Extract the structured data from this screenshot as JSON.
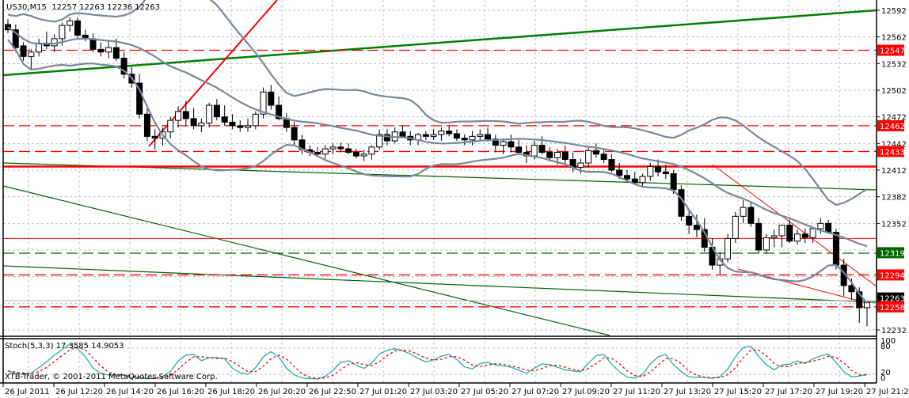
{
  "header": {
    "symbol_timeframe": "US30,M15",
    "ohlc": "12257 12263 12236 12263"
  },
  "stochastic": {
    "label": "Stoch(5,3,3) 17.3585 14.9053",
    "levels": [
      "100",
      "80",
      "20",
      "0"
    ]
  },
  "copyright": "XTB-Trader, © 2001-2011 MetaQuotes Software Corp.",
  "price_axis": {
    "ticks": [
      "12592",
      "12562",
      "12532",
      "12502",
      "12472",
      "12442",
      "12412",
      "12382",
      "12352",
      "12232"
    ],
    "tagged_levels": [
      {
        "value": "12547",
        "bg": "#ff0000",
        "fg": "#ffffff"
      },
      {
        "value": "12462",
        "bg": "#ff0000",
        "fg": "#ffffff"
      },
      {
        "value": "12433",
        "bg": "#ff0000",
        "fg": "#ffffff"
      },
      {
        "value": "12319",
        "bg": "#006400",
        "fg": "#ffffff"
      },
      {
        "value": "12294",
        "bg": "#ff0000",
        "fg": "#ffffff"
      },
      {
        "value": "12263",
        "bg": "#000000",
        "fg": "#ffffff"
      },
      {
        "value": "12258",
        "bg": "#ff0000",
        "fg": "#ffffff"
      }
    ]
  },
  "time_axis": {
    "labels": [
      "26 Jul 2011",
      "26 Jul 12:20",
      "26 Jul 14:20",
      "26 Jul 16:20",
      "26 Jul 18:20",
      "26 Jul 20:20",
      "26 Jul 22:50",
      "27 Jul 01:20",
      "27 Jul 03:20",
      "27 Jul 05:20",
      "27 Jul 07:20",
      "27 Jul 09:20",
      "27 Jul 11:20",
      "27 Jul 13:20",
      "27 Jul 15:20",
      "27 Jul 17:20",
      "27 Jul 19:20",
      "27 Jul 21:20"
    ]
  },
  "colors": {
    "bullish_candle": "#ffffff",
    "bearish_candle": "#000000",
    "bollinger": "#778899",
    "support_resistance": "#ff0000",
    "trendline_green": "#006400",
    "stoch_main": "#20b2aa",
    "stoch_signal": "#ff0000",
    "grid": "#c0c0c0"
  },
  "chart_data": [
    {
      "type": "candlestick",
      "title": "US30,M15",
      "ylabel": "Price",
      "ylim": [
        12225,
        12600
      ],
      "x_tick_labels": [
        "26 Jul 2011",
        "26 Jul 12:20",
        "26 Jul 14:20",
        "26 Jul 16:20",
        "26 Jul 18:20",
        "26 Jul 20:20",
        "26 Jul 22:50",
        "27 Jul 01:20",
        "27 Jul 03:20",
        "27 Jul 05:20",
        "27 Jul 07:20",
        "27 Jul 09:20",
        "27 Jul 11:20",
        "27 Jul 13:20",
        "27 Jul 15:20",
        "27 Jul 17:20",
        "27 Jul 19:20",
        "27 Jul 21:20"
      ],
      "last_ohlc": {
        "open": 12257,
        "high": 12263,
        "low": 12236,
        "close": 12263
      },
      "horizontal_levels": [
        {
          "price": 12547,
          "style": "dashed",
          "color": "#ff0000"
        },
        {
          "price": 12462,
          "style": "dashed",
          "color": "#ff0000"
        },
        {
          "price": 12433,
          "style": "dashed",
          "color": "#ff0000"
        },
        {
          "price": 12416,
          "style": "solid",
          "color": "#ff0000"
        },
        {
          "price": 12335,
          "style": "solid-thin",
          "color": "#ff0000"
        },
        {
          "price": 12319,
          "style": "dashed",
          "color": "#006400"
        },
        {
          "price": 12294,
          "style": "dashed",
          "color": "#ff0000"
        },
        {
          "price": 12258,
          "style": "dashed",
          "color": "#ff0000"
        }
      ],
      "candles": [
        [
          12576,
          12582,
          12566,
          12570
        ],
        [
          12570,
          12576,
          12545,
          12550
        ],
        [
          12552,
          12556,
          12535,
          12540
        ],
        [
          12540,
          12548,
          12525,
          12545
        ],
        [
          12545,
          12560,
          12540,
          12555
        ],
        [
          12555,
          12568,
          12548,
          12552
        ],
        [
          12552,
          12565,
          12545,
          12560
        ],
        [
          12560,
          12578,
          12552,
          12575
        ],
        [
          12575,
          12584,
          12568,
          12580
        ],
        [
          12580,
          12584,
          12560,
          12564
        ],
        [
          12564,
          12570,
          12557,
          12560
        ],
        [
          12560,
          12566,
          12545,
          12548
        ],
        [
          12548,
          12556,
          12540,
          12545
        ],
        [
          12545,
          12558,
          12538,
          12550
        ],
        [
          12550,
          12560,
          12535,
          12538
        ],
        [
          12538,
          12545,
          12515,
          12520
        ],
        [
          12520,
          12528,
          12505,
          12510
        ],
        [
          12510,
          12520,
          12470,
          12475
        ],
        [
          12475,
          12485,
          12445,
          12450
        ],
        [
          12450,
          12458,
          12435,
          12448
        ],
        [
          12448,
          12460,
          12440,
          12455
        ],
        [
          12455,
          12472,
          12448,
          12468
        ],
        [
          12468,
          12484,
          12460,
          12478
        ],
        [
          12478,
          12490,
          12462,
          12470
        ],
        [
          12470,
          12482,
          12458,
          12462
        ],
        [
          12462,
          12470,
          12455,
          12465
        ],
        [
          12465,
          12488,
          12460,
          12485
        ],
        [
          12485,
          12492,
          12468,
          12472
        ],
        [
          12472,
          12485,
          12462,
          12466
        ],
        [
          12466,
          12475,
          12458,
          12462
        ],
        [
          12462,
          12468,
          12455,
          12460
        ],
        [
          12460,
          12470,
          12455,
          12462
        ],
        [
          12462,
          12478,
          12458,
          12475
        ],
        [
          12475,
          12505,
          12470,
          12500
        ],
        [
          12500,
          12508,
          12480,
          12485
        ],
        [
          12485,
          12495,
          12468,
          12470
        ],
        [
          12470,
          12476,
          12455,
          12460
        ],
        [
          12460,
          12466,
          12440,
          12446
        ],
        [
          12446,
          12452,
          12430,
          12435
        ],
        [
          12435,
          12440,
          12428,
          12432
        ],
        [
          12432,
          12438,
          12428,
          12430
        ],
        [
          12430,
          12440,
          12425,
          12436
        ],
        [
          12436,
          12442,
          12430,
          12438
        ],
        [
          12438,
          12443,
          12432,
          12436
        ],
        [
          12436,
          12442,
          12430,
          12432
        ],
        [
          12432,
          12436,
          12425,
          12428
        ],
        [
          12428,
          12435,
          12422,
          12430
        ],
        [
          12430,
          12440,
          12424,
          12438
        ],
        [
          12438,
          12458,
          12435,
          12452
        ],
        [
          12452,
          12458,
          12440,
          12445
        ],
        [
          12445,
          12460,
          12442,
          12455
        ],
        [
          12455,
          12462,
          12448,
          12450
        ],
        [
          12450,
          12456,
          12440,
          12446
        ],
        [
          12446,
          12454,
          12440,
          12452
        ],
        [
          12452,
          12456,
          12446,
          12450
        ],
        [
          12450,
          12458,
          12446,
          12452
        ],
        [
          12452,
          12460,
          12445,
          12456
        ],
        [
          12456,
          12462,
          12450,
          12453
        ],
        [
          12453,
          12458,
          12445,
          12448
        ],
        [
          12448,
          12452,
          12440,
          12446
        ],
        [
          12446,
          12456,
          12440,
          12450
        ],
        [
          12450,
          12458,
          12444,
          12452
        ],
        [
          12452,
          12460,
          12444,
          12447
        ],
        [
          12447,
          12452,
          12432,
          12440
        ],
        [
          12440,
          12448,
          12430,
          12444
        ],
        [
          12444,
          12452,
          12432,
          12438
        ],
        [
          12438,
          12446,
          12430,
          12432
        ],
        [
          12432,
          12440,
          12420,
          12428
        ],
        [
          12428,
          12445,
          12424,
          12440
        ],
        [
          12440,
          12450,
          12430,
          12432
        ],
        [
          12432,
          12438,
          12422,
          12426
        ],
        [
          12426,
          12436,
          12418,
          12432
        ],
        [
          12432,
          12440,
          12420,
          12424
        ],
        [
          12424,
          12432,
          12410,
          12415
        ],
        [
          12415,
          12425,
          12408,
          12420
        ],
        [
          12420,
          12438,
          12415,
          12434
        ],
        [
          12434,
          12442,
          12426,
          12430
        ],
        [
          12430,
          12436,
          12420,
          12424
        ],
        [
          12424,
          12430,
          12410,
          12412
        ],
        [
          12412,
          12420,
          12402,
          12406
        ],
        [
          12406,
          12412,
          12398,
          12402
        ],
        [
          12402,
          12410,
          12396,
          12398
        ],
        [
          12398,
          12408,
          12392,
          12405
        ],
        [
          12405,
          12420,
          12400,
          12416
        ],
        [
          12416,
          12424,
          12405,
          12410
        ],
        [
          12410,
          12418,
          12402,
          12408
        ],
        [
          12408,
          12412,
          12385,
          12390
        ],
        [
          12390,
          12395,
          12355,
          12360
        ],
        [
          12360,
          12368,
          12340,
          12350
        ],
        [
          12350,
          12362,
          12336,
          12345
        ],
        [
          12345,
          12358,
          12320,
          12325
        ],
        [
          12325,
          12335,
          12300,
          12305
        ],
        [
          12305,
          12320,
          12295,
          12312
        ],
        [
          12312,
          12340,
          12308,
          12335
        ],
        [
          12335,
          12365,
          12330,
          12360
        ],
        [
          12360,
          12378,
          12352,
          12370
        ],
        [
          12370,
          12376,
          12348,
          12352
        ],
        [
          12352,
          12358,
          12318,
          12322
        ],
        [
          12322,
          12340,
          12318,
          12336
        ],
        [
          12336,
          12345,
          12325,
          12338
        ],
        [
          12338,
          12350,
          12325,
          12350
        ],
        [
          12350,
          12356,
          12330,
          12332
        ],
        [
          12332,
          12345,
          12328,
          12340
        ],
        [
          12340,
          12346,
          12330,
          12336
        ],
        [
          12336,
          12348,
          12330,
          12346
        ],
        [
          12346,
          12358,
          12340,
          12352
        ],
        [
          12352,
          12356,
          12340,
          12342
        ],
        [
          12342,
          12346,
          12300,
          12305
        ],
        [
          12305,
          12312,
          12270,
          12282
        ],
        [
          12282,
          12290,
          12266,
          12275
        ],
        [
          12275,
          12280,
          12240,
          12257
        ],
        [
          12257,
          12263,
          12236,
          12263
        ]
      ],
      "stochastic": {
        "main_last": 17.3585,
        "signal_last": 14.9053,
        "levels": [
          20,
          80
        ],
        "ylim": [
          0,
          100
        ]
      }
    }
  ]
}
